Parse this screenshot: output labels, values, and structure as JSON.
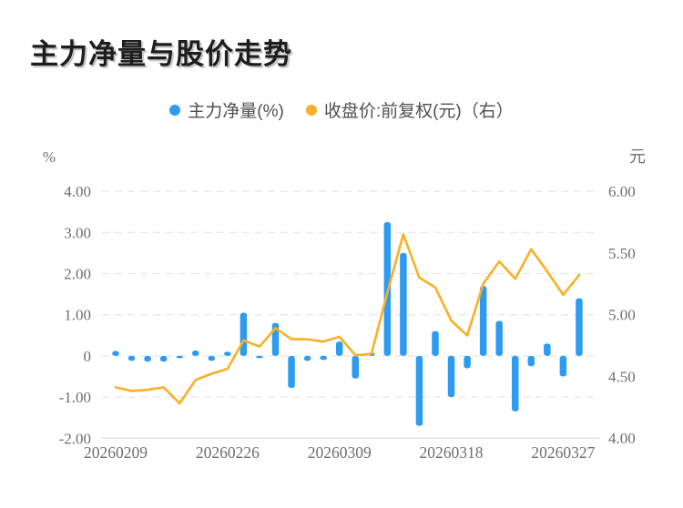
{
  "header": {
    "title": "主力净量与股价走势"
  },
  "legend": {
    "items": [
      {
        "label": "主力净量(%)",
        "color": "#2D9BF0"
      },
      {
        "label": "收盘价:前复权(元)（右）",
        "color": "#FBAF24"
      }
    ]
  },
  "axes": {
    "left_unit": "%",
    "right_unit": "元",
    "left_tick_labels": [
      "4.00",
      "3.00",
      "2.00",
      "1.00",
      "0",
      "-1.00",
      "-2.00"
    ],
    "right_tick_labels": [
      "6.00",
      "5.50",
      "5.00",
      "4.50",
      "4.00"
    ]
  },
  "chart_data": {
    "type": "bar+line dual-axis combo",
    "title": "主力净量与股价走势",
    "x_count": 30,
    "x_ticks": [
      {
        "index": 0,
        "label": "20260209"
      },
      {
        "index": 7,
        "label": "20260226"
      },
      {
        "index": 14,
        "label": "20260309"
      },
      {
        "index": 21,
        "label": "20260318"
      },
      {
        "index": 28,
        "label": "20260327"
      }
    ],
    "series": [
      {
        "name": "主力净量(%)",
        "type": "bar",
        "y_axis": "left",
        "color": "#2D9BF0",
        "values": [
          0.12,
          -0.12,
          -0.14,
          -0.14,
          -0.05,
          0.13,
          -0.12,
          0.1,
          1.05,
          -0.05,
          0.8,
          -0.78,
          -0.12,
          -0.1,
          0.35,
          -0.55,
          0.08,
          3.25,
          2.5,
          -1.7,
          0.6,
          -1.0,
          -0.3,
          1.7,
          0.85,
          -1.35,
          -0.25,
          0.3,
          -0.5,
          1.4
        ]
      },
      {
        "name": "收盘价:前复权(元)（右）",
        "type": "line",
        "y_axis": "right",
        "color": "#FBAF24",
        "values": [
          4.41,
          4.38,
          4.39,
          4.41,
          4.28,
          4.47,
          4.52,
          4.56,
          4.79,
          4.74,
          4.89,
          4.8,
          4.8,
          4.78,
          4.82,
          4.67,
          4.68,
          5.18,
          5.65,
          5.3,
          5.22,
          4.95,
          4.83,
          5.25,
          5.43,
          5.29,
          5.53,
          5.35,
          5.16,
          5.32
        ]
      }
    ],
    "left_axis": {
      "unit": "%",
      "min": -2,
      "max": 6,
      "ticks": [
        4,
        3,
        2,
        1,
        0,
        -1,
        -2
      ]
    },
    "right_axis": {
      "unit": "元",
      "min": 4,
      "max": 6,
      "ticks": [
        6,
        5.5,
        5,
        4.5,
        4
      ]
    },
    "grid": "horizontal dashed lines, solid bottom axis",
    "legend_position": "top-center"
  }
}
